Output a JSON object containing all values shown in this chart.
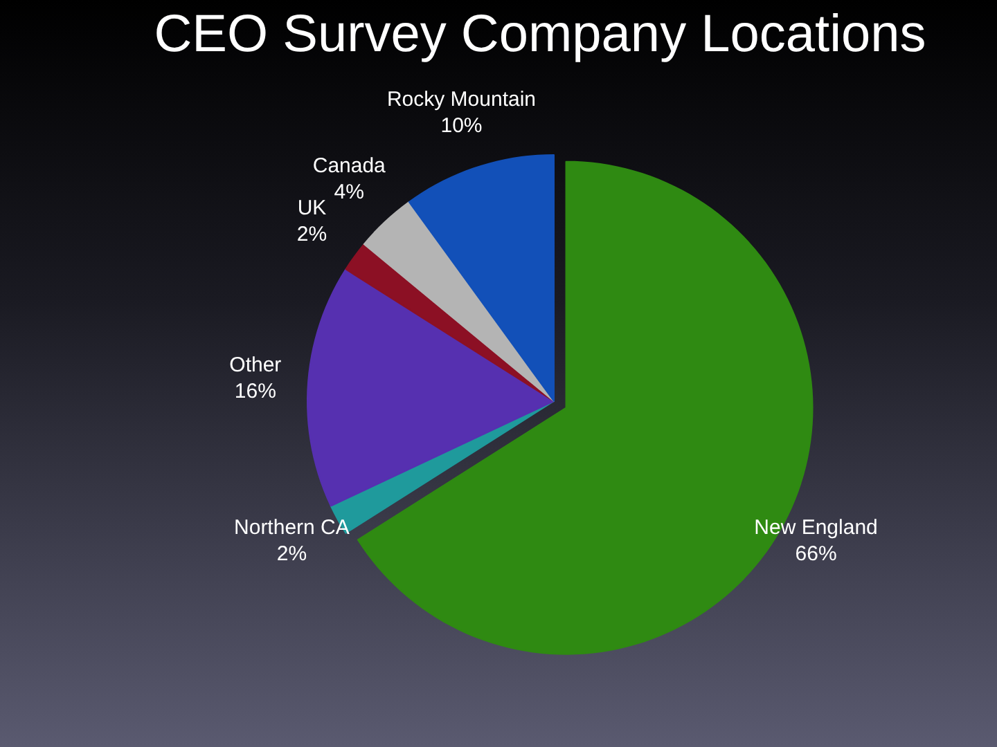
{
  "chart_data": {
    "type": "pie",
    "title": "CEO Survey Company Locations",
    "categories": [
      "New England",
      "Northern CA",
      "Other",
      "UK",
      "Canada",
      "Rocky Mountain"
    ],
    "values": [
      66,
      2,
      16,
      2,
      4,
      10
    ],
    "value_labels": [
      "66%",
      "2%",
      "16%",
      "2%",
      "4%",
      "10%"
    ],
    "colors": [
      "#2f8a12",
      "#1f9a9c",
      "#5630b0",
      "#8c1024",
      "#b4b4b4",
      "#1250b8"
    ]
  }
}
